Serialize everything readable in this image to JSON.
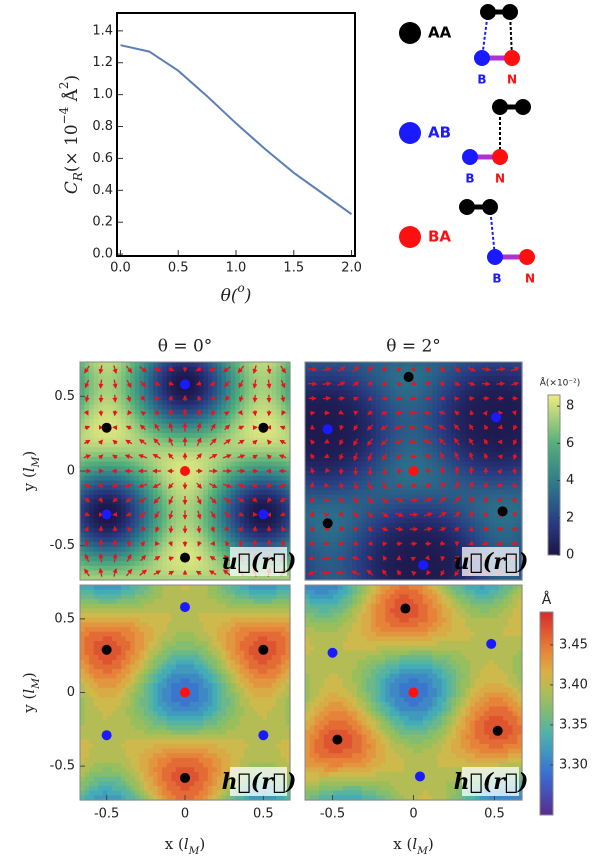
{
  "legend": [
    {
      "label": "AA",
      "color": "#000000",
      "atoms": [
        "B",
        "N"
      ]
    },
    {
      "label": "AB",
      "color": "#1a1aff",
      "atoms": [
        "B",
        "N"
      ]
    },
    {
      "label": "BA",
      "color": "#ff1010",
      "atoms": [
        "B",
        "N"
      ]
    }
  ],
  "chart_data": [
    {
      "type": "line",
      "xlabel": [
        "θ(",
        "o",
        ")"
      ],
      "ylabel": [
        "C",
        "R",
        "(× 10",
        "−4",
        " Å",
        "2",
        ")"
      ],
      "x": [
        0,
        0.25,
        0.5,
        0.75,
        1,
        1.25,
        1.5,
        1.75,
        2
      ],
      "values": [
        1.31,
        1.27,
        1.15,
        0.99,
        0.82,
        0.66,
        0.51,
        0.38,
        0.25
      ],
      "color": "#5b7fb5",
      "xlim": [
        -0.03,
        2.03
      ],
      "ylim": [
        -0.012,
        1.512
      ],
      "xticks": [
        {
          "value": 0,
          "label": "0.0"
        },
        0.5,
        {
          "value": 1,
          "label": "1.0"
        },
        1.5,
        {
          "value": 2,
          "label": "2.0"
        }
      ],
      "yticks": [
        {
          "value": 0,
          "label": "0.0"
        },
        0.2,
        0.4,
        0.6,
        0.8,
        {
          "value": 1,
          "label": "1.0"
        },
        1.2,
        1.4
      ]
    },
    {
      "type": "vector-map",
      "title": "θ = 0°",
      "ylabel": [
        "y (",
        "l",
        "M",
        ")"
      ],
      "inset": "u⃗(r⃗)",
      "xlim": [
        -0.67,
        0.67
      ],
      "ylim": [
        -0.73,
        0.73
      ],
      "yticks": [
        -0.5,
        0,
        0.5
      ],
      "series": [
        {
          "color": "#000000",
          "x": [
            -0.5,
            0.5,
            0
          ],
          "y": [
            0.29,
            0.29,
            -0.58
          ]
        },
        {
          "color": "#1a1aff",
          "x": [
            0,
            -0.5,
            0.5
          ],
          "y": [
            0.58,
            -0.29,
            -0.29
          ]
        },
        {
          "color": "#ff1010",
          "x": [
            0
          ],
          "y": [
            0
          ]
        }
      ]
    },
    {
      "type": "vector-map",
      "title": "θ = 2°",
      "inset": "u⃗(r⃗)",
      "xlim": [
        -0.67,
        0.67
      ],
      "ylim": [
        -0.73,
        0.73
      ],
      "series": [
        {
          "color": "#000000",
          "x": [
            -0.03,
            -0.53,
            0.55
          ],
          "y": [
            0.63,
            -0.35,
            -0.27
          ]
        },
        {
          "color": "#1a1aff",
          "x": [
            -0.53,
            0.51,
            0.06
          ],
          "y": [
            0.28,
            0.36,
            -0.63
          ]
        },
        {
          "color": "#ff1010",
          "x": [
            0
          ],
          "y": [
            0
          ]
        }
      ],
      "colorbar": {
        "label": "Å(×10⁻²)",
        "lim": [
          0,
          8.6
        ],
        "ticks": [
          0,
          2,
          4,
          6,
          8
        ]
      }
    },
    {
      "type": "contour-map",
      "ylabel": [
        "y (",
        "l",
        "M",
        ")"
      ],
      "xlabel": [
        "x (",
        "l",
        "M",
        ")"
      ],
      "inset": "h⃗(r⃗)",
      "xlim": [
        -0.67,
        0.67
      ],
      "ylim": [
        -0.73,
        0.73
      ],
      "xticks": [
        -0.5,
        0,
        0.5
      ],
      "yticks": [
        -0.5,
        0,
        0.5
      ],
      "series": [
        {
          "color": "#000000",
          "x": [
            -0.5,
            0.5,
            0
          ],
          "y": [
            0.29,
            0.29,
            -0.58
          ]
        },
        {
          "color": "#1a1aff",
          "x": [
            0,
            -0.5,
            0.5
          ],
          "y": [
            0.58,
            -0.29,
            -0.29
          ]
        },
        {
          "color": "#ff1010",
          "x": [
            0
          ],
          "y": [
            0
          ]
        }
      ]
    },
    {
      "type": "contour-map",
      "xlabel": [
        "x (",
        "l",
        "M",
        ")"
      ],
      "inset": "h⃗(r⃗)",
      "xlim": [
        -0.67,
        0.67
      ],
      "ylim": [
        -0.73,
        0.73
      ],
      "xticks": [
        -0.5,
        0,
        0.5
      ],
      "series": [
        {
          "color": "#000000",
          "x": [
            -0.05,
            -0.47,
            0.52
          ],
          "y": [
            0.57,
            -0.32,
            -0.26
          ]
        },
        {
          "color": "#1a1aff",
          "x": [
            -0.5,
            0.48,
            0.04
          ],
          "y": [
            0.27,
            0.33,
            -0.57
          ]
        },
        {
          "color": "#ff1010",
          "x": [
            0
          ],
          "y": [
            0
          ]
        }
      ],
      "colorbar": {
        "label": "Å",
        "lim": [
          3.2375,
          3.491
        ],
        "ticks": [
          {
            "value": 3.3,
            "label": "3.30"
          },
          3.35,
          {
            "value": 3.4,
            "label": "3.40"
          },
          3.45
        ]
      }
    }
  ]
}
